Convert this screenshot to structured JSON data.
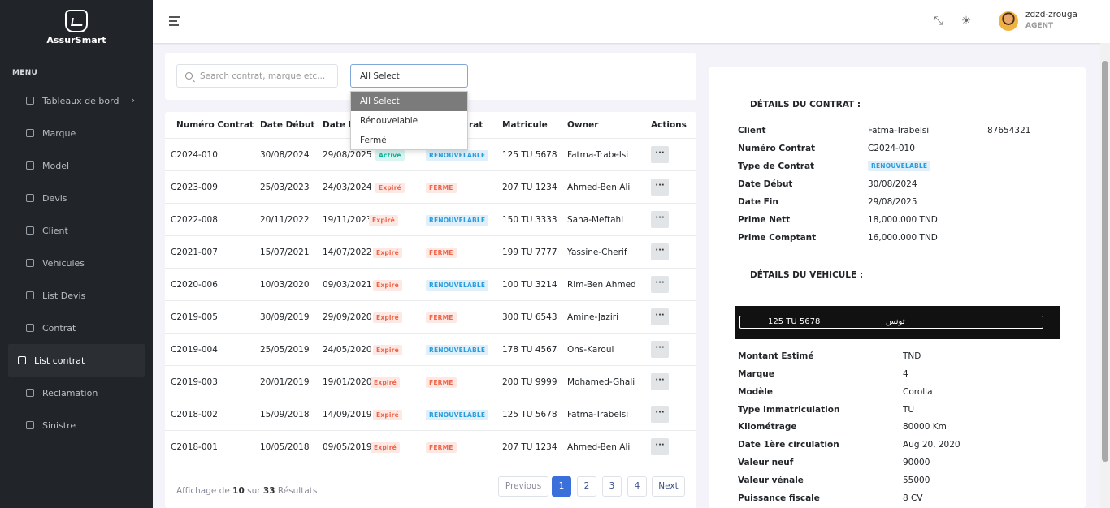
{
  "app": {
    "name": "AssurSmart"
  },
  "sidebar": {
    "menu_title": "MENU",
    "items": [
      {
        "label": "Tableaux de bord",
        "icon": "dashboard-icon",
        "has_chevron": true
      },
      {
        "label": "Marque",
        "icon": "tag-icon"
      },
      {
        "label": "Model",
        "icon": "car-icon"
      },
      {
        "label": "Devis",
        "icon": "file-icon"
      },
      {
        "label": "Client",
        "icon": "id-card-icon"
      },
      {
        "label": "Vehicules",
        "icon": "car-icon"
      },
      {
        "label": "List Devis",
        "icon": "list-icon"
      },
      {
        "label": "Contrat",
        "icon": "contract-icon"
      },
      {
        "label": "List contrat",
        "icon": "list-icon",
        "active": true
      },
      {
        "label": "Reclamation",
        "icon": "chat-icon"
      },
      {
        "label": "Sinistre",
        "icon": "user-icon"
      }
    ]
  },
  "topbar": {
    "user_name": "zdzd-zrouga",
    "user_role": "AGENT",
    "collapse_glyph": "⤡",
    "theme_glyph": "☀"
  },
  "filters": {
    "search_placeholder": "Search contrat, marque etc...",
    "select_value": "All Select",
    "options": [
      "All Select",
      "Rénouvelable",
      "Fermé"
    ]
  },
  "table": {
    "headers": [
      "Numéro Contrat",
      "Date Début",
      "Date Fin",
      "Type Contrat",
      "Matricule",
      "Owner",
      "Actions"
    ],
    "visible_headers": [
      "Numéro Contrat",
      "Date Début",
      "Date Fi",
      "rat",
      "Matricule",
      "Owner",
      "Actions"
    ],
    "action_label": "···",
    "rows": [
      {
        "num": "C2024-010",
        "debut": "30/08/2024",
        "fin": "29/08/2025",
        "status": "Active",
        "type": "RENOUVELABLE",
        "matricule": "125 TU 5678",
        "owner": "Fatma-Trabelsi"
      },
      {
        "num": "C2023-009",
        "debut": "25/03/2023",
        "fin": "24/03/2024",
        "status": "Expiré",
        "type": "FERME",
        "matricule": "207 TU 1234",
        "owner": "Ahmed-Ben Ali"
      },
      {
        "num": "C2022-008",
        "debut": "20/11/2022",
        "fin": "19/11/2023",
        "status": "Expiré",
        "type": "RENOUVELABLE",
        "matricule": "150 TU 3333",
        "owner": "Sana-Meftahi"
      },
      {
        "num": "C2021-007",
        "debut": "15/07/2021",
        "fin": "14/07/2022",
        "status": "Expiré",
        "type": "FERME",
        "matricule": "199 TU 7777",
        "owner": "Yassine-Cherif"
      },
      {
        "num": "C2020-006",
        "debut": "10/03/2020",
        "fin": "09/03/2021",
        "status": "Expiré",
        "type": "RENOUVELABLE",
        "matricule": "100 TU 3214",
        "owner": "Rim-Ben Ahmed"
      },
      {
        "num": "C2019-005",
        "debut": "30/09/2019",
        "fin": "29/09/2020",
        "status": "Expiré",
        "type": "FERME",
        "matricule": "300 TU 6543",
        "owner": "Amine-Jaziri"
      },
      {
        "num": "C2019-004",
        "debut": "25/05/2019",
        "fin": "24/05/2020",
        "status": "Expiré",
        "type": "RENOUVELABLE",
        "matricule": "178 TU 4567",
        "owner": "Ons-Karoui"
      },
      {
        "num": "C2019-003",
        "debut": "20/01/2019",
        "fin": "19/01/2020",
        "status": "Expiré",
        "type": "FERME",
        "matricule": "200 TU 9999",
        "owner": "Mohamed-Ghali"
      },
      {
        "num": "C2018-002",
        "debut": "15/09/2018",
        "fin": "14/09/2019",
        "status": "Expiré",
        "type": "RENOUVELABLE",
        "matricule": "125 TU 5678",
        "owner": "Fatma-Trabelsi"
      },
      {
        "num": "C2018-001",
        "debut": "10/05/2018",
        "fin": "09/05/2019",
        "status": "Expiré",
        "type": "FERME",
        "matricule": "207 TU 1234",
        "owner": "Ahmed-Ben Ali"
      }
    ]
  },
  "pagination": {
    "info_prefix": "Affichage de",
    "shown": "10",
    "info_mid": "sur",
    "total": "33",
    "info_suffix": "Résultats",
    "previous": "Previous",
    "pages": [
      "1",
      "2",
      "3",
      "4"
    ],
    "current": "1",
    "next": "Next"
  },
  "details": {
    "contract_title": "DÉTAILS DU CONTRAT :",
    "client_label": "Client",
    "client_value": "Fatma-Trabelsi",
    "client_phone": "87654321",
    "contract_fields": [
      {
        "label": "Numéro Contrat",
        "value": "C2024-010"
      },
      {
        "label": "Type de Contrat",
        "value": "RENOUVELABLE",
        "badge": true
      },
      {
        "label": "Date Début",
        "value": "30/08/2024"
      },
      {
        "label": "Date Fin",
        "value": "29/08/2025"
      },
      {
        "label": "Prime Nett",
        "value": "18,000.000 TND"
      },
      {
        "label": "Prime Comptant",
        "value": "16,000.000 TND"
      }
    ],
    "vehicle_title": "DÉTAILS DU VEHICULE :",
    "plate_number": "125 TU 5678",
    "plate_arabic": "تونس",
    "vehicle_fields": [
      {
        "label": "Montant Estimé",
        "value": "TND"
      },
      {
        "label": "Marque",
        "value": "4"
      },
      {
        "label": "Modèle",
        "value": "Corolla"
      },
      {
        "label": "Type Immatriculation",
        "value": "TU"
      },
      {
        "label": "Kilométrage",
        "value": "80000 Km"
      },
      {
        "label": "Date 1ère circulation",
        "value": "Aug 20, 2020"
      },
      {
        "label": "Valeur neuf",
        "value": "90000"
      },
      {
        "label": "Valeur vénale",
        "value": "55000"
      },
      {
        "label": "Puissance fiscale",
        "value": "8 CV"
      }
    ]
  },
  "colors": {
    "sidebar_bg": "#212529",
    "primary": "#3b6fd9",
    "success": "#0ab39c",
    "danger": "#f06548",
    "info": "#299cdb"
  }
}
